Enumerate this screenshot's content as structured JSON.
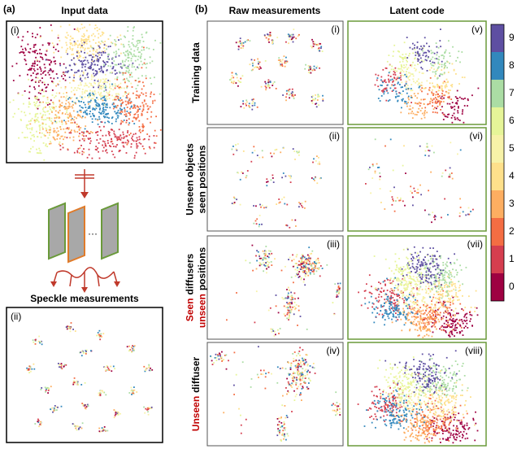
{
  "panel_a": {
    "label": "(a)",
    "input_title": "Input data",
    "input_label": "(i)",
    "ellipsis": "···",
    "speckle_title": "Speckle measurements",
    "speckle_label": "(ii)"
  },
  "panel_b": {
    "label": "(b)",
    "columns": [
      "Raw measurements",
      "Latent code"
    ],
    "rows": [
      {
        "lines": [
          [
            {
              "text": "Training data",
              "emphasis": false
            }
          ]
        ],
        "raw_label": "(i)",
        "latent_label": "(v)"
      },
      {
        "lines": [
          [
            {
              "text": "Unseen objects",
              "emphasis": false
            }
          ],
          [
            {
              "text": "seen positions",
              "emphasis": false
            }
          ]
        ],
        "raw_label": "(ii)",
        "latent_label": "(vi)"
      },
      {
        "lines": [
          [
            {
              "text": "Seen",
              "emphasis": true
            },
            {
              "text": "diffusers",
              "emphasis": false
            }
          ],
          [
            {
              "text": "unseen",
              "emphasis": true
            },
            {
              "text": "positions",
              "emphasis": false
            }
          ]
        ],
        "raw_label": "(iii)",
        "latent_label": "(vii)"
      },
      {
        "lines": [
          [
            {
              "text": "Unseen",
              "emphasis": true
            },
            {
              "text": "diffuser",
              "emphasis": false
            }
          ]
        ],
        "raw_label": "(iv)",
        "latent_label": "(viii)"
      }
    ]
  },
  "colorbar": {
    "ticks": [
      0,
      1,
      2,
      3,
      4,
      5,
      6,
      7,
      8,
      9
    ],
    "colors": [
      "#9e0142",
      "#d53e4f",
      "#f46d43",
      "#fdae61",
      "#fee08b",
      "#f7f2a8",
      "#e6f598",
      "#abdda4",
      "#3288bd",
      "#5e4fa2"
    ]
  }
}
